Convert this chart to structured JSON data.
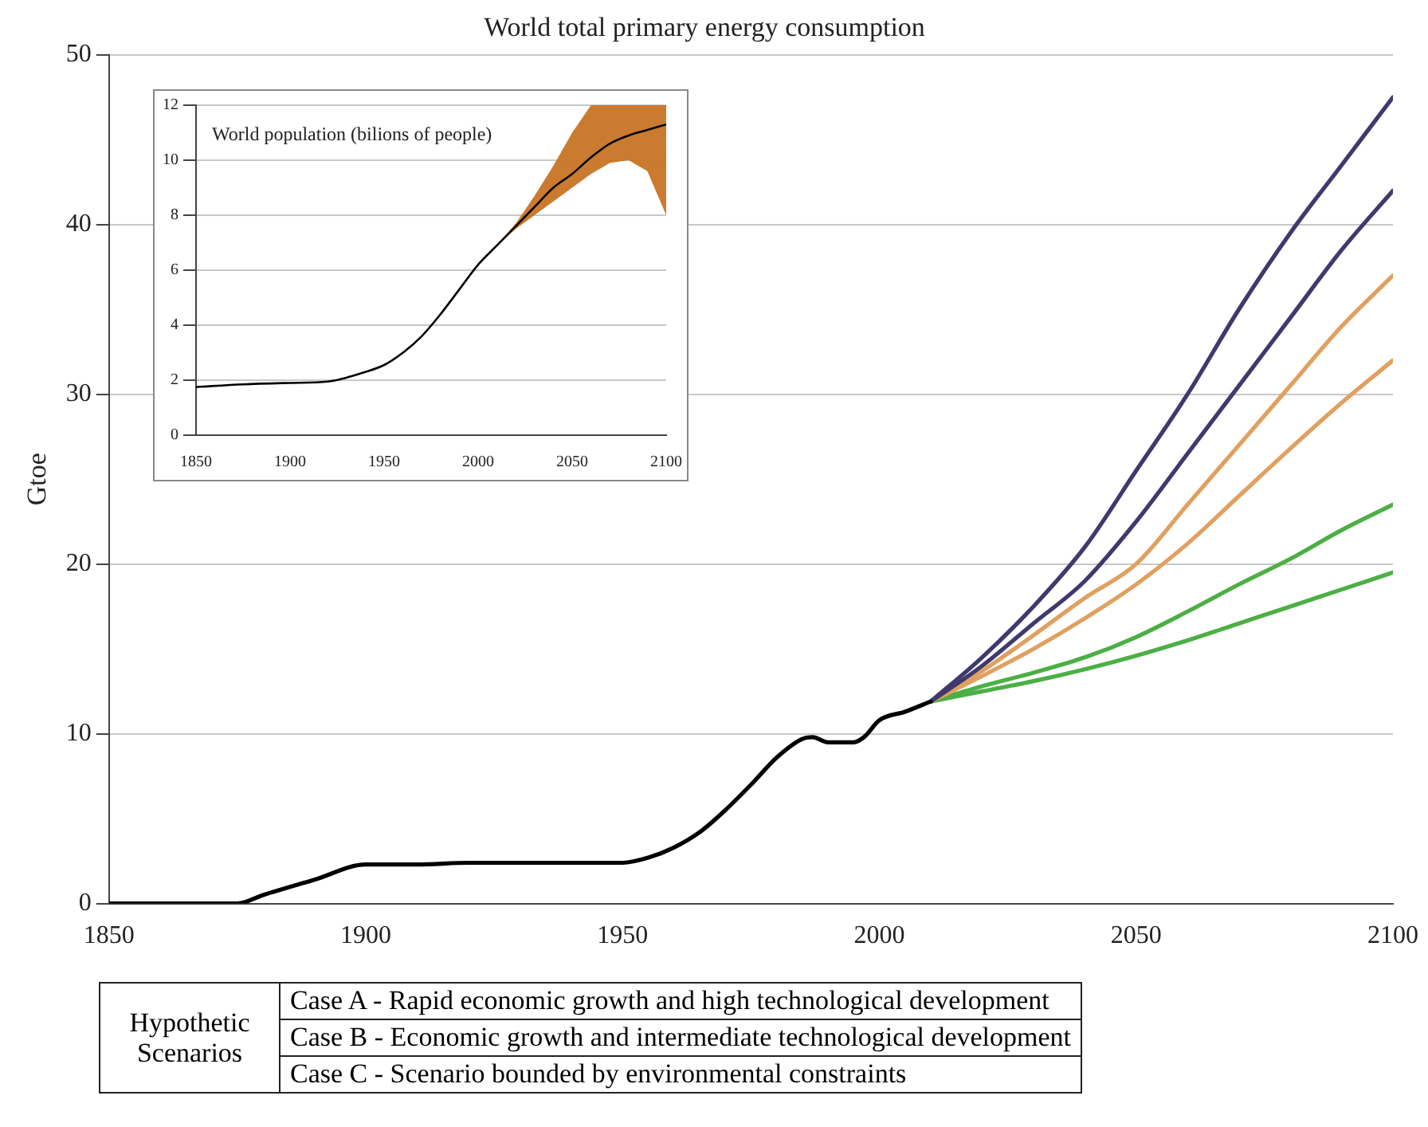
{
  "chart_data": [
    {
      "type": "line",
      "title": "World total primary energy consumption",
      "ylabel": "Gtoe",
      "xlim": [
        1850,
        2100
      ],
      "xticks": [
        1850,
        1900,
        1950,
        2000,
        2050,
        2100
      ],
      "ylim": [
        0,
        50
      ],
      "yticks": [
        0,
        10,
        20,
        30,
        40,
        50
      ],
      "grid": "y",
      "legend": false,
      "series": [
        {
          "color": "#000000",
          "x": [
            1850,
            1860,
            1875,
            1880,
            1890,
            1900,
            1910,
            1920,
            1930,
            1940,
            1950,
            1955,
            1960,
            1965,
            1970,
            1975,
            1980,
            1985,
            1987,
            1990,
            1995,
            1997,
            2000,
            2005,
            2010
          ],
          "values": [
            0,
            0,
            0,
            0.5,
            1.4,
            2.3,
            2.3,
            2.4,
            2.4,
            2.4,
            2.4,
            2.7,
            3.3,
            4.2,
            5.5,
            7.0,
            8.6,
            9.7,
            9.8,
            9.5,
            9.5,
            9.8,
            10.8,
            11.3,
            11.9
          ]
        },
        {
          "color": "#3e3a6e",
          "x": [
            2010,
            2020,
            2030,
            2040,
            2050,
            2060,
            2070,
            2080,
            2090,
            2100
          ],
          "values": [
            11.9,
            14.5,
            17.5,
            21,
            25.5,
            30,
            35,
            39.5,
            43.5,
            47.5
          ]
        },
        {
          "color": "#3e3a6e",
          "x": [
            2010,
            2020,
            2030,
            2040,
            2050,
            2060,
            2070,
            2080,
            2090,
            2100
          ],
          "values": [
            11.9,
            14,
            16.5,
            19,
            22.5,
            26.5,
            30.5,
            34.5,
            38.5,
            42
          ]
        },
        {
          "color": "#e0a060",
          "x": [
            2010,
            2020,
            2030,
            2040,
            2050,
            2060,
            2070,
            2080,
            2090,
            2100
          ],
          "values": [
            11.9,
            13.7,
            15.8,
            18,
            20,
            23.5,
            27,
            30.5,
            34,
            37
          ]
        },
        {
          "color": "#e0a060",
          "x": [
            2010,
            2020,
            2030,
            2040,
            2050,
            2060,
            2070,
            2080,
            2090,
            2100
          ],
          "values": [
            11.9,
            13.4,
            15,
            16.8,
            18.8,
            21.2,
            24,
            26.8,
            29.5,
            32
          ]
        },
        {
          "color": "#4caf45",
          "x": [
            2010,
            2020,
            2030,
            2040,
            2050,
            2060,
            2070,
            2080,
            2090,
            2100
          ],
          "values": [
            11.9,
            12.8,
            13.6,
            14.5,
            15.7,
            17.2,
            18.8,
            20.3,
            22,
            23.5
          ]
        },
        {
          "color": "#4caf45",
          "x": [
            2010,
            2020,
            2030,
            2040,
            2050,
            2060,
            2070,
            2080,
            2090,
            2100
          ],
          "values": [
            11.9,
            12.5,
            13.1,
            13.8,
            14.6,
            15.5,
            16.5,
            17.5,
            18.5,
            19.5
          ]
        }
      ],
      "annotations": [
        "Hypothetic Scenarios",
        "Case A - Rapid economic growth and high technological development",
        "Case B - Economic growth and intermediate technological development",
        "Case C - Scenario bounded by environmental constraints"
      ]
    },
    {
      "type": "line",
      "title": "World population (bilions of people)",
      "xlim": [
        1850,
        2100
      ],
      "xticks": [
        1850,
        1900,
        1950,
        2000,
        2050,
        2100
      ],
      "ylim": [
        0,
        12
      ],
      "yticks": [
        0,
        2,
        4,
        6,
        8,
        10,
        12
      ],
      "grid": "y",
      "legend": false,
      "series": [
        {
          "color": "#000000",
          "x": [
            1850,
            1875,
            1900,
            1920,
            1940,
            1950,
            1960,
            1970,
            1980,
            1990,
            2000,
            2010,
            2020,
            2030,
            2040,
            2050,
            2060,
            2070,
            2080,
            2090,
            2100
          ],
          "values": [
            1.75,
            1.85,
            1.9,
            1.95,
            2.3,
            2.55,
            3.0,
            3.6,
            4.4,
            5.3,
            6.2,
            6.9,
            7.6,
            8.3,
            9.0,
            9.5,
            10.1,
            10.6,
            10.9,
            11.1,
            11.3
          ],
          "lower": [
            null,
            null,
            null,
            null,
            null,
            null,
            null,
            null,
            null,
            null,
            null,
            6.9,
            7.5,
            8.0,
            8.5,
            9.0,
            9.5,
            9.9,
            10.0,
            9.6,
            8.0
          ],
          "upper": [
            null,
            null,
            null,
            null,
            null,
            null,
            null,
            null,
            null,
            null,
            null,
            6.9,
            7.7,
            8.7,
            9.8,
            11.0,
            12,
            12,
            12,
            12,
            12
          ]
        }
      ]
    }
  ]
}
